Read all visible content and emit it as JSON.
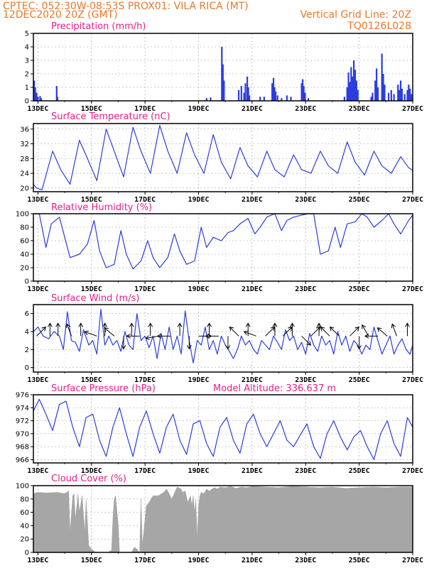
{
  "header": {
    "line1": "CPTEC:  052:30W-08:53S  PROX01: VILA RICA (MT)",
    "line2_left": "12DEC2020 20Z (GMT)",
    "line2_right": "Vertical Grid Line: 20Z",
    "line3_right": "TQ0126L028"
  },
  "colors": {
    "header": "#e8792b",
    "title": "#e0208a",
    "line": "#2b3de0",
    "cloud": "#a6a6a6",
    "frame": "#000000",
    "grid": "#999999"
  },
  "x_axis": {
    "start_day": 12.83,
    "end_day": 27.0,
    "tick_labels": [
      "13DEC",
      "15DEC",
      "17DEC",
      "19DEC",
      "21DEC",
      "23DEC",
      "25DEC",
      "27DEC"
    ],
    "tick_days": [
      13,
      15,
      17,
      19,
      21,
      23,
      25,
      27
    ]
  },
  "chart_data": [
    {
      "id": "precip",
      "type": "bar",
      "title": "Precipitation (mm/h)",
      "ylim": [
        0,
        5
      ],
      "yticks": [
        0,
        1,
        2,
        3,
        4,
        5
      ],
      "grid": true,
      "events": [
        {
          "day": 12.86,
          "value": 1.5
        },
        {
          "day": 12.9,
          "value": 1.0
        },
        {
          "day": 12.95,
          "value": 0.6
        },
        {
          "day": 13.0,
          "value": 0.3
        },
        {
          "day": 13.08,
          "value": 0.35
        },
        {
          "day": 13.12,
          "value": 0.2
        },
        {
          "day": 13.7,
          "value": 1.1
        },
        {
          "day": 13.73,
          "value": 0.3
        },
        {
          "day": 19.3,
          "value": 0.2
        },
        {
          "day": 19.45,
          "value": 0.25
        },
        {
          "day": 19.87,
          "value": 4.0
        },
        {
          "day": 19.91,
          "value": 2.7
        },
        {
          "day": 19.95,
          "value": 1.5
        },
        {
          "day": 20.5,
          "value": 0.8
        },
        {
          "day": 20.6,
          "value": 1.1
        },
        {
          "day": 20.7,
          "value": 0.6
        },
        {
          "day": 20.75,
          "value": 1.3
        },
        {
          "day": 20.82,
          "value": 1.8
        },
        {
          "day": 20.86,
          "value": 1.0
        },
        {
          "day": 20.9,
          "value": 0.4
        },
        {
          "day": 21.3,
          "value": 0.3
        },
        {
          "day": 21.45,
          "value": 0.3
        },
        {
          "day": 21.75,
          "value": 1.3
        },
        {
          "day": 21.8,
          "value": 1.7
        },
        {
          "day": 21.84,
          "value": 1.0
        },
        {
          "day": 21.88,
          "value": 0.7
        },
        {
          "day": 21.95,
          "value": 0.4
        },
        {
          "day": 22.1,
          "value": 0.2
        },
        {
          "day": 22.3,
          "value": 0.4
        },
        {
          "day": 22.45,
          "value": 0.3
        },
        {
          "day": 22.85,
          "value": 1.3
        },
        {
          "day": 22.89,
          "value": 1.6
        },
        {
          "day": 22.93,
          "value": 1.1
        },
        {
          "day": 22.98,
          "value": 0.6
        },
        {
          "day": 23.1,
          "value": 0.2
        },
        {
          "day": 24.45,
          "value": 0.3
        },
        {
          "day": 24.55,
          "value": 1.0
        },
        {
          "day": 24.6,
          "value": 2.1
        },
        {
          "day": 24.65,
          "value": 1.4
        },
        {
          "day": 24.7,
          "value": 2.5
        },
        {
          "day": 24.75,
          "value": 1.8
        },
        {
          "day": 24.8,
          "value": 3.0
        },
        {
          "day": 24.85,
          "value": 2.3
        },
        {
          "day": 24.9,
          "value": 1.5
        },
        {
          "day": 24.95,
          "value": 0.8
        },
        {
          "day": 25.45,
          "value": 0.3
        },
        {
          "day": 25.5,
          "value": 0.6
        },
        {
          "day": 25.6,
          "value": 1.5
        },
        {
          "day": 25.65,
          "value": 2.4
        },
        {
          "day": 25.7,
          "value": 1.0
        },
        {
          "day": 25.85,
          "value": 3.5
        },
        {
          "day": 25.9,
          "value": 2.0
        },
        {
          "day": 25.95,
          "value": 1.2
        },
        {
          "day": 26.1,
          "value": 0.6
        },
        {
          "day": 26.2,
          "value": 0.8
        },
        {
          "day": 26.3,
          "value": 0.5
        },
        {
          "day": 26.45,
          "value": 1.2
        },
        {
          "day": 26.5,
          "value": 0.8
        },
        {
          "day": 26.55,
          "value": 1.5
        },
        {
          "day": 26.6,
          "value": 0.9
        },
        {
          "day": 26.7,
          "value": 0.5
        },
        {
          "day": 26.8,
          "value": 0.8
        },
        {
          "day": 26.85,
          "value": 1.2
        },
        {
          "day": 26.9,
          "value": 0.9
        },
        {
          "day": 26.95,
          "value": 0.5
        }
      ]
    },
    {
      "id": "temperature",
      "type": "line",
      "title": "Surface Temperature (nC)",
      "ylim": [
        19,
        37.5
      ],
      "yticks": [
        20,
        24,
        28,
        32,
        36
      ],
      "grid": true,
      "x": [
        12.83,
        12.95,
        13.15,
        13.55,
        13.85,
        14.2,
        14.55,
        14.85,
        15.2,
        15.55,
        15.85,
        16.2,
        16.55,
        16.85,
        17.2,
        17.55,
        17.85,
        18.2,
        18.55,
        18.85,
        19.2,
        19.55,
        19.85,
        20.2,
        20.55,
        20.85,
        21.2,
        21.55,
        21.85,
        22.2,
        22.55,
        22.85,
        23.2,
        23.55,
        23.85,
        24.2,
        24.55,
        24.85,
        25.2,
        25.55,
        25.85,
        26.2,
        26.55,
        26.85,
        27.0
      ],
      "y": [
        21,
        20,
        19.5,
        30,
        25,
        21,
        33,
        28,
        22,
        36,
        30,
        23,
        36.5,
        30,
        24,
        37,
        30,
        24,
        35,
        29,
        24,
        34.5,
        27,
        22.5,
        31,
        26,
        23,
        30,
        25,
        23,
        29,
        25,
        24,
        30,
        26,
        24,
        32.5,
        27,
        23.5,
        30,
        26,
        24,
        28.5,
        25.5,
        24.8
      ]
    },
    {
      "id": "humidity",
      "type": "line",
      "title": "Relative Humidity (%)",
      "ylim": [
        0,
        100
      ],
      "yticks": [
        0,
        20,
        40,
        60,
        80,
        100
      ],
      "grid": true,
      "x": [
        12.83,
        13.05,
        13.3,
        13.5,
        13.8,
        14.2,
        14.55,
        14.85,
        15.1,
        15.3,
        15.55,
        15.85,
        16.1,
        16.3,
        16.55,
        16.85,
        17.1,
        17.3,
        17.55,
        17.85,
        18.1,
        18.3,
        18.55,
        18.85,
        19.1,
        19.3,
        19.55,
        19.85,
        20.1,
        20.3,
        20.55,
        20.85,
        21.1,
        21.3,
        21.55,
        21.85,
        22.1,
        22.3,
        22.55,
        22.85,
        23.1,
        23.3,
        23.55,
        23.85,
        24.1,
        24.3,
        24.55,
        24.85,
        25.1,
        25.3,
        25.55,
        25.85,
        26.1,
        26.3,
        26.55,
        26.85,
        27.0
      ],
      "y": [
        100,
        100,
        50,
        85,
        95,
        35,
        40,
        55,
        90,
        45,
        20,
        25,
        75,
        40,
        18,
        30,
        60,
        35,
        20,
        35,
        70,
        45,
        25,
        30,
        80,
        50,
        65,
        60,
        72,
        75,
        85,
        93,
        70,
        80,
        95,
        100,
        75,
        90,
        95,
        98,
        100,
        100,
        40,
        45,
        80,
        50,
        85,
        88,
        100,
        95,
        80,
        90,
        100,
        85,
        70,
        90,
        98
      ]
    },
    {
      "id": "wind",
      "type": "line",
      "title": "Surface Wind (m/s)",
      "ylim": [
        -0.5,
        7
      ],
      "yticks": [
        0,
        2,
        4,
        6
      ],
      "grid": true,
      "x": [
        12.83,
        13.0,
        13.2,
        13.4,
        13.6,
        13.8,
        13.95,
        14.1,
        14.25,
        14.4,
        14.55,
        14.7,
        14.9,
        15.05,
        15.2,
        15.35,
        15.5,
        15.65,
        15.8,
        15.95,
        16.1,
        16.25,
        16.4,
        16.55,
        16.7,
        16.85,
        17.0,
        17.15,
        17.3,
        17.45,
        17.6,
        17.75,
        17.9,
        18.05,
        18.2,
        18.35,
        18.5,
        18.65,
        18.8,
        18.95,
        19.1,
        19.25,
        19.4,
        19.55,
        19.7,
        19.85,
        20.0,
        20.15,
        20.3,
        20.45,
        20.6,
        20.75,
        20.9,
        21.05,
        21.2,
        21.35,
        21.5,
        21.65,
        21.8,
        21.95,
        22.1,
        22.25,
        22.4,
        22.55,
        22.7,
        22.85,
        23.0,
        23.15,
        23.3,
        23.45,
        23.6,
        23.75,
        23.9,
        24.05,
        24.2,
        24.35,
        24.5,
        24.65,
        24.8,
        24.95,
        25.1,
        25.25,
        25.4,
        25.55,
        25.7,
        25.85,
        26.0,
        26.15,
        26.3,
        26.45,
        26.6,
        26.75,
        26.9,
        27.0
      ],
      "y": [
        4.0,
        4.5,
        3.5,
        3.2,
        4.0,
        3.5,
        2.0,
        6.2,
        3.0,
        2.8,
        1.8,
        4.2,
        2.5,
        3.0,
        1.5,
        6.5,
        2.5,
        3.5,
        2.5,
        3.0,
        1.8,
        4.0,
        2.5,
        2.0,
        6.0,
        3.0,
        3.5,
        2.2,
        3.5,
        1.0,
        3.8,
        2.0,
        4.5,
        2.0,
        3.5,
        1.5,
        6.3,
        3.0,
        0.5,
        3.0,
        2.5,
        4.5,
        2.0,
        3.0,
        1.5,
        3.5,
        2.5,
        1.8,
        1.0,
        2.0,
        3.5,
        2.5,
        3.0,
        2.0,
        1.5,
        3.0,
        2.5,
        2.0,
        3.5,
        2.8,
        2.0,
        4.2,
        3.0,
        3.5,
        2.0,
        2.8,
        1.5,
        3.8,
        2.5,
        1.8,
        3.5,
        2.5,
        3.0,
        1.5,
        4.0,
        2.5,
        3.5,
        1.8,
        3.0,
        2.5,
        1.5,
        2.5,
        2.0,
        4.5,
        3.0,
        1.5,
        2.5,
        3.5,
        1.5,
        2.5,
        3.2,
        2.0,
        1.5,
        2.5
      ],
      "arrows": [
        {
          "day": 12.95,
          "speed": 3.5,
          "dir_deg": 135
        },
        {
          "day": 13.45,
          "speed": 3.5,
          "dir_deg": 180
        },
        {
          "day": 13.75,
          "speed": 3.5,
          "dir_deg": 180
        },
        {
          "day": 14.25,
          "speed": 3.5,
          "dir_deg": 200
        },
        {
          "day": 14.6,
          "speed": 3.5,
          "dir_deg": 180
        },
        {
          "day": 15.2,
          "speed": 3.5,
          "dir_deg": 250
        },
        {
          "day": 15.5,
          "speed": 3.5,
          "dir_deg": 180
        },
        {
          "day": 15.85,
          "speed": 3.5,
          "dir_deg": 230
        },
        {
          "day": 16.2,
          "speed": 3.5,
          "dir_deg": 0
        },
        {
          "day": 16.5,
          "speed": 3.5,
          "dir_deg": 180
        },
        {
          "day": 16.8,
          "speed": 3.5,
          "dir_deg": 270
        },
        {
          "day": 17.2,
          "speed": 3.5,
          "dir_deg": 180
        },
        {
          "day": 17.5,
          "speed": 3.5,
          "dir_deg": 280
        },
        {
          "day": 17.95,
          "speed": 3.5,
          "dir_deg": 270
        },
        {
          "day": 18.3,
          "speed": 3.5,
          "dir_deg": 180
        },
        {
          "day": 18.65,
          "speed": 3.5,
          "dir_deg": 0
        },
        {
          "day": 19.0,
          "speed": 3.5,
          "dir_deg": 90
        },
        {
          "day": 19.4,
          "speed": 3.5,
          "dir_deg": 180
        },
        {
          "day": 19.75,
          "speed": 3.5,
          "dir_deg": 270
        },
        {
          "day": 20.1,
          "speed": 3.5,
          "dir_deg": 0
        },
        {
          "day": 20.5,
          "speed": 3.5,
          "dir_deg": 225
        },
        {
          "day": 20.85,
          "speed": 3.5,
          "dir_deg": 180
        },
        {
          "day": 21.15,
          "speed": 3.5,
          "dir_deg": 250
        },
        {
          "day": 21.5,
          "speed": 3.5,
          "dir_deg": 135
        },
        {
          "day": 21.85,
          "speed": 3.5,
          "dir_deg": 180
        },
        {
          "day": 22.15,
          "speed": 3.5,
          "dir_deg": 135
        },
        {
          "day": 22.5,
          "speed": 3.5,
          "dir_deg": 180
        },
        {
          "day": 22.85,
          "speed": 3.5,
          "dir_deg": 45
        },
        {
          "day": 23.2,
          "speed": 3.5,
          "dir_deg": 135
        },
        {
          "day": 23.5,
          "speed": 3.5,
          "dir_deg": 180
        },
        {
          "day": 23.9,
          "speed": 3.5,
          "dir_deg": 225
        },
        {
          "day": 24.25,
          "speed": 3.5,
          "dir_deg": 225
        },
        {
          "day": 24.65,
          "speed": 3.5,
          "dir_deg": 135
        },
        {
          "day": 25.0,
          "speed": 3.5,
          "dir_deg": 0
        },
        {
          "day": 25.35,
          "speed": 3.5,
          "dir_deg": 210
        },
        {
          "day": 25.7,
          "speed": 3.5,
          "dir_deg": 270
        },
        {
          "day": 26.05,
          "speed": 3.5,
          "dir_deg": 230
        },
        {
          "day": 26.4,
          "speed": 3.5,
          "dir_deg": 200
        },
        {
          "day": 26.8,
          "speed": 3.5,
          "dir_deg": 180
        }
      ]
    },
    {
      "id": "pressure",
      "type": "line",
      "title": "Surface Pressure (hPa)",
      "annotation": "Model Altitude: 336.637  m",
      "ylim": [
        965.5,
        976
      ],
      "yticks": [
        966,
        968,
        970,
        972,
        974,
        976
      ],
      "grid": true,
      "x": [
        12.83,
        13.05,
        13.3,
        13.55,
        13.8,
        14.05,
        14.3,
        14.55,
        14.8,
        15.05,
        15.3,
        15.55,
        15.8,
        16.05,
        16.3,
        16.55,
        16.8,
        17.05,
        17.3,
        17.55,
        17.8,
        18.05,
        18.3,
        18.55,
        18.8,
        19.05,
        19.3,
        19.55,
        19.8,
        20.05,
        20.3,
        20.55,
        20.8,
        21.05,
        21.3,
        21.55,
        21.8,
        22.05,
        22.3,
        22.55,
        22.8,
        23.05,
        23.3,
        23.55,
        23.8,
        24.05,
        24.3,
        24.55,
        24.8,
        25.05,
        25.3,
        25.55,
        25.8,
        26.05,
        26.3,
        26.55,
        26.8,
        27.0
      ],
      "y": [
        973.5,
        975.3,
        973,
        970.5,
        974.5,
        975,
        971,
        968,
        972.5,
        973,
        969,
        966.5,
        971,
        974,
        970,
        966.5,
        971,
        973.5,
        970,
        967,
        971,
        973,
        969,
        966.8,
        971.5,
        972,
        968.5,
        966.5,
        971,
        972.5,
        969,
        967,
        971.5,
        973,
        970,
        968,
        970,
        972,
        969,
        968,
        969.8,
        971.5,
        968,
        966.2,
        970,
        972,
        969.5,
        967.5,
        969.5,
        970.5,
        968,
        966,
        970,
        972,
        968.5,
        966.5,
        972.5,
        971
      ]
    },
    {
      "id": "cloud",
      "type": "area",
      "title": "Cloud Cover (%)",
      "ylim": [
        0,
        100
      ],
      "yticks": [
        0,
        20,
        40,
        60,
        80,
        100
      ],
      "grid": true,
      "x": [
        12.83,
        13.0,
        13.3,
        13.7,
        14.0,
        14.15,
        14.2,
        14.3,
        14.35,
        14.4,
        14.5,
        14.55,
        14.65,
        14.75,
        14.8,
        14.9,
        15.0,
        15.1,
        15.15,
        15.3,
        15.6,
        15.75,
        15.8,
        15.85,
        15.9,
        16.0,
        16.05,
        16.3,
        16.5,
        16.6,
        16.7,
        16.75,
        16.8,
        16.85,
        16.9,
        17.0,
        17.05,
        17.15,
        17.3,
        17.5,
        17.7,
        17.8,
        17.85,
        18.0,
        18.2,
        18.35,
        18.4,
        18.5,
        18.6,
        18.7,
        18.75,
        18.8,
        18.85,
        18.9,
        18.95,
        19.0,
        19.05,
        19.1,
        19.2,
        19.3,
        19.4,
        19.5,
        19.6,
        19.7,
        19.8,
        20.0,
        20.2,
        20.4,
        20.6,
        20.8,
        21.0,
        21.5,
        22.0,
        22.5,
        23.0,
        23.5,
        24.0,
        24.5,
        25.0,
        25.5,
        26.0,
        26.5,
        27.0
      ],
      "y": [
        88,
        90,
        89,
        90,
        88,
        92,
        30,
        85,
        88,
        50,
        88,
        60,
        85,
        30,
        80,
        10,
        5,
        2,
        0,
        0,
        0,
        3,
        50,
        80,
        85,
        40,
        0,
        0,
        0,
        8,
        5,
        2,
        0,
        80,
        10,
        50,
        70,
        75,
        85,
        85,
        90,
        95,
        92,
        80,
        98,
        95,
        90,
        92,
        75,
        85,
        70,
        85,
        60,
        80,
        20,
        70,
        85,
        90,
        88,
        95,
        92,
        95,
        97,
        95,
        98,
        97,
        99,
        96,
        98,
        97,
        99,
        98,
        97,
        99,
        98,
        97,
        98,
        96,
        97,
        98,
        97,
        98,
        98
      ]
    }
  ]
}
